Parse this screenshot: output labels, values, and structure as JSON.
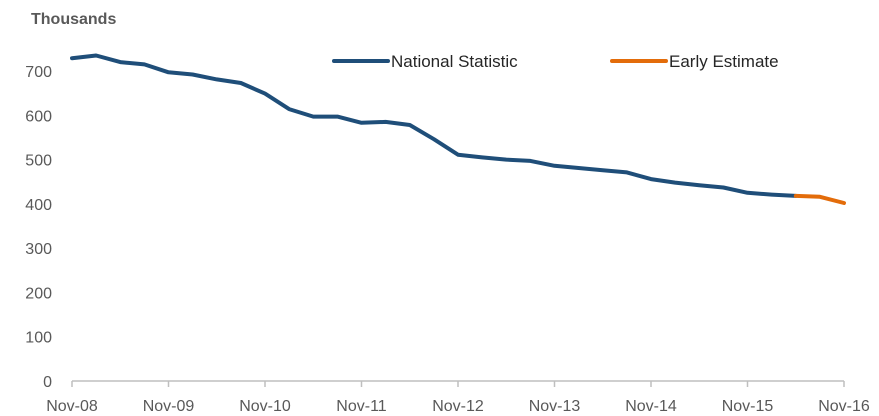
{
  "chart_data": {
    "type": "line",
    "y_unit_label": "Thousands",
    "ylim": [
      0,
      700
    ],
    "y_ticks": [
      0,
      100,
      200,
      300,
      400,
      500,
      600,
      700
    ],
    "x_tick_labels": [
      "Nov-08",
      "Nov-09",
      "Nov-10",
      "Nov-11",
      "Nov-12",
      "Nov-13",
      "Nov-14",
      "Nov-15",
      "Nov-16"
    ],
    "x_tick_dates": [
      "2008-11",
      "2009-11",
      "2010-11",
      "2011-11",
      "2012-11",
      "2013-11",
      "2014-11",
      "2015-11",
      "2016-11"
    ],
    "grid": false,
    "legend_position": "top-right",
    "series": [
      {
        "name": "National Statistic",
        "color": "#1f4e79",
        "points": [
          {
            "x": "2008-11",
            "y": 729
          },
          {
            "x": "2009-02",
            "y": 735
          },
          {
            "x": "2009-05",
            "y": 720
          },
          {
            "x": "2009-08",
            "y": 715
          },
          {
            "x": "2009-11",
            "y": 697
          },
          {
            "x": "2010-02",
            "y": 692
          },
          {
            "x": "2010-05",
            "y": 681
          },
          {
            "x": "2010-08",
            "y": 673
          },
          {
            "x": "2010-11",
            "y": 649
          },
          {
            "x": "2011-02",
            "y": 614
          },
          {
            "x": "2011-05",
            "y": 597
          },
          {
            "x": "2011-08",
            "y": 597
          },
          {
            "x": "2011-11",
            "y": 583
          },
          {
            "x": "2012-02",
            "y": 585
          },
          {
            "x": "2012-05",
            "y": 578
          },
          {
            "x": "2012-08",
            "y": 546
          },
          {
            "x": "2012-11",
            "y": 511
          },
          {
            "x": "2013-02",
            "y": 505
          },
          {
            "x": "2013-05",
            "y": 500
          },
          {
            "x": "2013-08",
            "y": 497
          },
          {
            "x": "2013-11",
            "y": 486
          },
          {
            "x": "2014-02",
            "y": 481
          },
          {
            "x": "2014-05",
            "y": 476
          },
          {
            "x": "2014-08",
            "y": 471
          },
          {
            "x": "2014-11",
            "y": 456
          },
          {
            "x": "2015-02",
            "y": 448
          },
          {
            "x": "2015-05",
            "y": 442
          },
          {
            "x": "2015-08",
            "y": 437
          },
          {
            "x": "2015-11",
            "y": 425
          },
          {
            "x": "2016-02",
            "y": 421
          },
          {
            "x": "2016-05",
            "y": 418
          }
        ]
      },
      {
        "name": "Early Estimate",
        "color": "#e36c0a",
        "points": [
          {
            "x": "2016-05",
            "y": 418
          },
          {
            "x": "2016-08",
            "y": 416
          },
          {
            "x": "2016-11",
            "y": 402
          }
        ]
      }
    ]
  }
}
